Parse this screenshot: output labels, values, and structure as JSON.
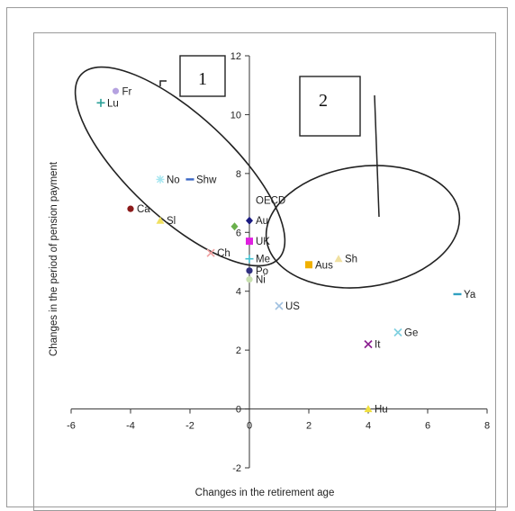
{
  "chart_data": {
    "type": "scatter",
    "xlabel": "Changes in the retirement age",
    "ylabel": "Changes in the period of pension payment",
    "xlim": [
      -6,
      8
    ],
    "ylim": [
      -2,
      12
    ],
    "xticks": [
      -6,
      -4,
      -2,
      0,
      2,
      4,
      6,
      8
    ],
    "yticks": [
      -2,
      0,
      2,
      4,
      6,
      8,
      10,
      12
    ],
    "grid": false,
    "points": [
      {
        "label": "Fr",
        "x": -4.5,
        "y": 10.8,
        "marker": "circle",
        "color": "#b5a2e0"
      },
      {
        "label": "Lu",
        "x": -5.0,
        "y": 10.4,
        "marker": "plus",
        "color": "#2aa198"
      },
      {
        "label": "No",
        "x": -3.0,
        "y": 7.8,
        "marker": "star",
        "color": "#a6e6f0"
      },
      {
        "label": "Shw",
        "x": -2.0,
        "y": 7.8,
        "marker": "dash",
        "color": "#3a66c4"
      },
      {
        "label": "Ca",
        "x": -4.0,
        "y": 6.8,
        "marker": "circle",
        "color": "#8b1a1a"
      },
      {
        "label": "Sl",
        "x": -3.0,
        "y": 6.4,
        "marker": "triangle",
        "color": "#f0e060"
      },
      {
        "label": "OECD",
        "x": 0.0,
        "y": 7.1,
        "marker": "none",
        "color": "#222222"
      },
      {
        "label": "Au",
        "x": 0.0,
        "y": 6.4,
        "marker": "diamond",
        "color": "#1a1a80"
      },
      {
        "label": "",
        "x": -0.5,
        "y": 6.2,
        "marker": "diamond",
        "color": "#6ab04c"
      },
      {
        "label": "UK",
        "x": 0.0,
        "y": 5.7,
        "marker": "square",
        "color": "#e020e0"
      },
      {
        "label": "Ch",
        "x": -1.3,
        "y": 5.3,
        "marker": "x",
        "color": "#f0a0a0"
      },
      {
        "label": "Me",
        "x": 0.0,
        "y": 5.1,
        "marker": "plus",
        "color": "#40c0d0"
      },
      {
        "label": "Po",
        "x": 0.0,
        "y": 4.7,
        "marker": "circle",
        "color": "#303080"
      },
      {
        "label": "Ni",
        "x": 0.0,
        "y": 4.4,
        "marker": "circle",
        "color": "#c8e0b0"
      },
      {
        "label": "Aus",
        "x": 2.0,
        "y": 4.9,
        "marker": "square",
        "color": "#f0b000"
      },
      {
        "label": "Sh",
        "x": 3.0,
        "y": 5.1,
        "marker": "triangle",
        "color": "#f0e0a0"
      },
      {
        "label": "US",
        "x": 1.0,
        "y": 3.5,
        "marker": "x",
        "color": "#a0c0e0"
      },
      {
        "label": "Ya",
        "x": 7.0,
        "y": 3.9,
        "marker": "dash",
        "color": "#30a0c0"
      },
      {
        "label": "Ge",
        "x": 5.0,
        "y": 2.6,
        "marker": "x",
        "color": "#80d0e0"
      },
      {
        "label": "It",
        "x": 4.0,
        "y": 2.2,
        "marker": "x",
        "color": "#8b2090"
      },
      {
        "label": "Hu",
        "x": 4.0,
        "y": 0.0,
        "marker": "triangle",
        "color": "#f0e040"
      }
    ],
    "annotations": [
      {
        "type": "box-label",
        "text": "1"
      },
      {
        "type": "box-label",
        "text": "2"
      }
    ]
  }
}
